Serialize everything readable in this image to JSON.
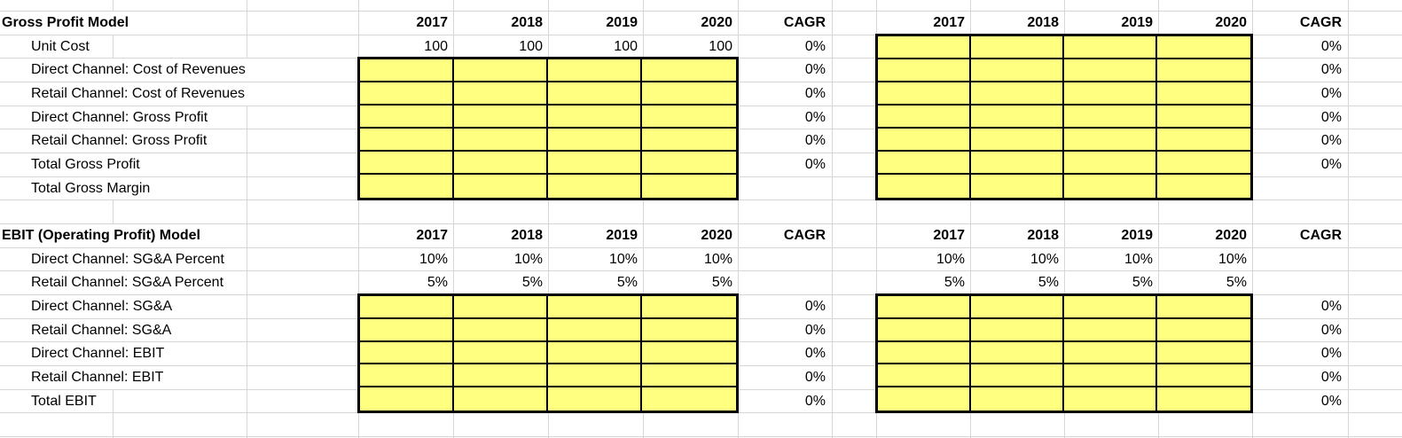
{
  "app": {
    "kind": "spreadsheet-financial-model"
  },
  "colors": {
    "highlight_fill": "#FFFF80",
    "gridline": "#D6D6D6",
    "cell_border": "#000000",
    "text": "#000000",
    "background": "#FFFFFF"
  },
  "year_columns": [
    "2017",
    "2018",
    "2019",
    "2020"
  ],
  "cagr_label": "CAGR",
  "sections": [
    {
      "title": "Gross Profit Model",
      "rows": [
        {
          "label": "Unit Cost",
          "left": {
            "type": "values",
            "values": [
              "100",
              "100",
              "100",
              "100"
            ],
            "cagr": "0%"
          },
          "right": {
            "type": "yellow",
            "cagr": "0%"
          }
        },
        {
          "label": "Direct Channel: Cost of Revenues",
          "left": {
            "type": "yellow",
            "cagr": "0%"
          },
          "right": {
            "type": "yellow",
            "cagr": "0%"
          }
        },
        {
          "label": "Retail Channel: Cost of Revenues",
          "left": {
            "type": "yellow",
            "cagr": "0%"
          },
          "right": {
            "type": "yellow",
            "cagr": "0%"
          }
        },
        {
          "label": "Direct Channel: Gross Profit",
          "left": {
            "type": "yellow",
            "cagr": "0%"
          },
          "right": {
            "type": "yellow",
            "cagr": "0%"
          }
        },
        {
          "label": "Retail Channel: Gross Profit",
          "left": {
            "type": "yellow",
            "cagr": "0%"
          },
          "right": {
            "type": "yellow",
            "cagr": "0%"
          }
        },
        {
          "label": "Total Gross Profit",
          "left": {
            "type": "yellow",
            "cagr": "0%"
          },
          "right": {
            "type": "yellow",
            "cagr": "0%"
          }
        },
        {
          "label": "Total Gross Margin",
          "left": {
            "type": "yellow",
            "cagr": ""
          },
          "right": {
            "type": "yellow",
            "cagr": ""
          }
        }
      ]
    },
    {
      "title": "EBIT (Operating Profit) Model",
      "rows": [
        {
          "label": "Direct Channel: SG&A Percent",
          "left": {
            "type": "values",
            "values": [
              "10%",
              "10%",
              "10%",
              "10%"
            ],
            "cagr": ""
          },
          "right": {
            "type": "values",
            "values": [
              "10%",
              "10%",
              "10%",
              "10%"
            ],
            "cagr": ""
          }
        },
        {
          "label": "Retail Channel: SG&A Percent",
          "left": {
            "type": "values",
            "values": [
              "5%",
              "5%",
              "5%",
              "5%"
            ],
            "cagr": ""
          },
          "right": {
            "type": "values",
            "values": [
              "5%",
              "5%",
              "5%",
              "5%"
            ],
            "cagr": ""
          }
        },
        {
          "label": "Direct Channel: SG&A",
          "left": {
            "type": "yellow",
            "cagr": "0%"
          },
          "right": {
            "type": "yellow",
            "cagr": "0%"
          }
        },
        {
          "label": "Retail Channel: SG&A",
          "left": {
            "type": "yellow",
            "cagr": "0%"
          },
          "right": {
            "type": "yellow",
            "cagr": "0%"
          }
        },
        {
          "label": "Direct Channel: EBIT",
          "left": {
            "type": "yellow",
            "cagr": "0%"
          },
          "right": {
            "type": "yellow",
            "cagr": "0%"
          }
        },
        {
          "label": "Retail Channel: EBIT",
          "left": {
            "type": "yellow",
            "cagr": "0%"
          },
          "right": {
            "type": "yellow",
            "cagr": "0%"
          }
        },
        {
          "label": "Total EBIT",
          "left": {
            "type": "yellow",
            "cagr": "0%"
          },
          "right": {
            "type": "yellow",
            "cagr": "0%"
          }
        }
      ]
    }
  ]
}
